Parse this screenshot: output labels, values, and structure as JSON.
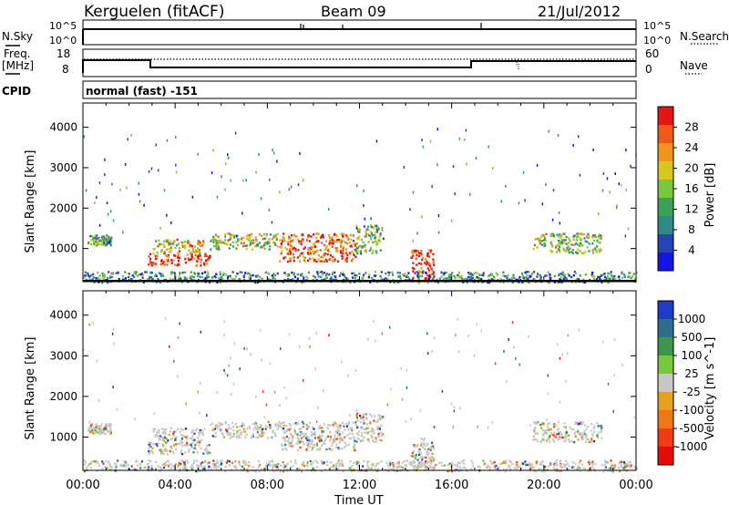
{
  "header": {
    "station": "Kerguelen (fitACF)",
    "beam": "Beam 09",
    "date": "21/Jul/2012"
  },
  "panels": {
    "nsky": {
      "left_label": "N.Sky",
      "right_label": "N.Search",
      "top_tick": "10^5",
      "bottom_tick": "10^0"
    },
    "freq": {
      "left_label_1": "Freq.",
      "left_label_2": "[MHz]",
      "left_ticks": [
        "18",
        "8"
      ],
      "right_label": "Nave",
      "right_ticks": [
        "60",
        "0"
      ]
    },
    "cpid": {
      "label": "CPID",
      "value": "normal (fast) -151"
    }
  },
  "colors": {
    "power_scale": [
      "#1414e6",
      "#2346b4",
      "#2e8a8a",
      "#3aa05a",
      "#78c83c",
      "#d8c81e",
      "#f0961e",
      "#f05a14",
      "#e61414"
    ],
    "velocity_scale": [
      "#1e3cc8",
      "#2e6e8c",
      "#3c964b",
      "#78c83c",
      "#c8c8c8",
      "#e6a01e",
      "#f07814",
      "#f03c14",
      "#e60a0a"
    ]
  },
  "chart_data": [
    {
      "type": "heatmap",
      "title": "Power",
      "ylabel": "Slant Range [km]",
      "y_ticks": [
        "1000",
        "2000",
        "3000",
        "4000"
      ],
      "ylim": [
        180,
        4600
      ],
      "xlim": [
        0,
        24
      ],
      "x_ticks": [
        "00:00",
        "04:00",
        "08:00",
        "12:00",
        "16:00",
        "20:00",
        "00:00"
      ],
      "colorbar": {
        "label": "Power [dB]",
        "ticks": [
          "4",
          "8",
          "12",
          "16",
          "20",
          "24",
          "28"
        ]
      },
      "features": [
        {
          "t_start": 0.2,
          "t_end": 1.2,
          "range_start": 1100,
          "range_end": 1350,
          "level": 0.35
        },
        {
          "t_start": 2.8,
          "t_end": 5.5,
          "range_start": 600,
          "range_end": 900,
          "level": 0.95
        },
        {
          "t_start": 3.0,
          "t_end": 5.2,
          "range_start": 900,
          "range_end": 1250,
          "level": 0.65
        },
        {
          "t_start": 5.5,
          "t_end": 8.5,
          "range_start": 1000,
          "range_end": 1400,
          "level": 0.55
        },
        {
          "t_start": 8.5,
          "t_end": 11.8,
          "range_start": 700,
          "range_end": 1400,
          "level": 0.85
        },
        {
          "t_start": 11.8,
          "t_end": 13.0,
          "range_start": 900,
          "range_end": 1600,
          "level": 0.45
        },
        {
          "t_start": 14.2,
          "t_end": 15.2,
          "range_start": 250,
          "range_end": 1000,
          "level": 0.95
        },
        {
          "t_start": 19.5,
          "t_end": 22.5,
          "range_start": 900,
          "range_end": 1400,
          "level": 0.5
        },
        {
          "t_start": 0.0,
          "t_end": 24.0,
          "range_start": 180,
          "range_end": 450,
          "level": 0.3
        }
      ]
    },
    {
      "type": "heatmap",
      "title": "Velocity",
      "ylabel": "Slant Range [km]",
      "xlabel": "Time UT",
      "y_ticks": [
        "1000",
        "2000",
        "3000",
        "4000"
      ],
      "ylim": [
        180,
        4600
      ],
      "xlim": [
        0,
        24
      ],
      "x_ticks": [
        "00:00",
        "04:00",
        "08:00",
        "12:00",
        "16:00",
        "20:00",
        "00:00"
      ],
      "colorbar": {
        "label": "Velocity [m s^-1]",
        "ticks": [
          "1000",
          "500",
          "100",
          "25",
          "-25",
          "-100",
          "-500",
          "-1000"
        ]
      },
      "features": [
        {
          "t_start": 0.2,
          "t_end": 1.2,
          "range_start": 1100,
          "range_end": 1350,
          "level": 0.6
        },
        {
          "t_start": 2.8,
          "t_end": 5.5,
          "range_start": 600,
          "range_end": 900,
          "level": 0.5
        },
        {
          "t_start": 3.0,
          "t_end": 5.2,
          "range_start": 900,
          "range_end": 1250,
          "level": 0.5
        },
        {
          "t_start": 5.5,
          "t_end": 8.5,
          "range_start": 1000,
          "range_end": 1400,
          "level": 0.5
        },
        {
          "t_start": 8.5,
          "t_end": 11.8,
          "range_start": 700,
          "range_end": 1400,
          "level": 0.5
        },
        {
          "t_start": 11.8,
          "t_end": 13.0,
          "range_start": 900,
          "range_end": 1600,
          "level": 0.5
        },
        {
          "t_start": 14.2,
          "t_end": 15.2,
          "range_start": 250,
          "range_end": 1000,
          "level": 0.3
        },
        {
          "t_start": 19.5,
          "t_end": 22.5,
          "range_start": 900,
          "range_end": 1400,
          "level": 0.5
        },
        {
          "t_start": 0.0,
          "t_end": 24.0,
          "range_start": 180,
          "range_end": 450,
          "level": 0.6
        }
      ]
    }
  ]
}
